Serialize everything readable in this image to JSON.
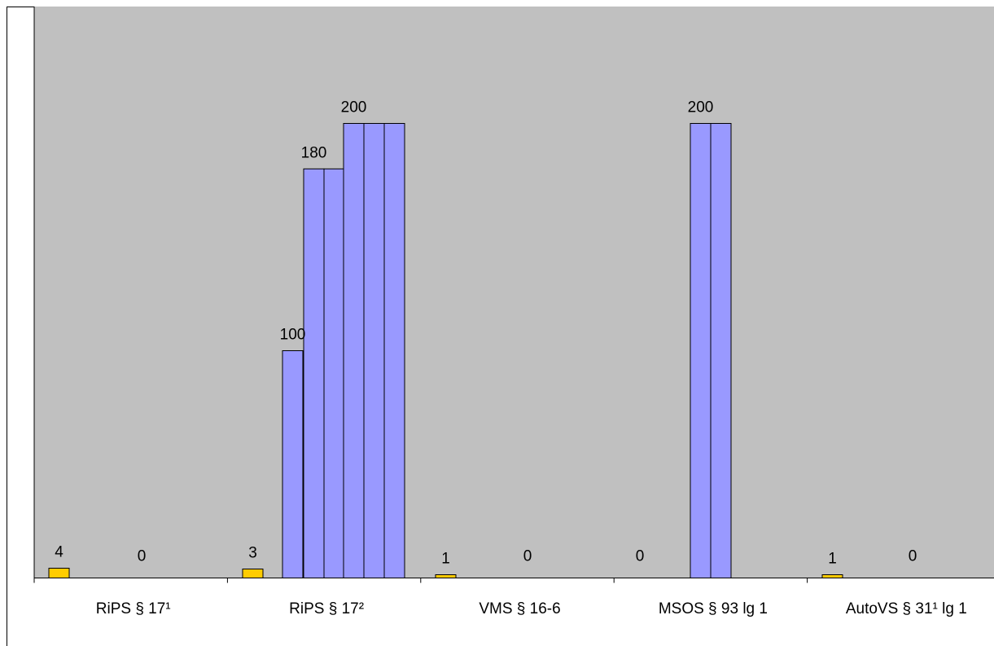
{
  "chart_data": {
    "type": "bar",
    "title": "",
    "xlabel": "",
    "ylabel": "",
    "ylim": [
      0,
      200
    ],
    "categories": [
      "RiPS § 17¹",
      "RiPS § 17²",
      "VMS § 16-6",
      "MSOS § 93 lg 1",
      "AutoVS § 31¹ lg 1"
    ],
    "colors": {
      "small": "#FFCC00",
      "large": "#9999FF",
      "plot_background": "#C0C0C0"
    },
    "groups": [
      {
        "category": "RiPS § 17¹",
        "bars": [
          {
            "value": 4,
            "label": "4",
            "color": "small"
          }
        ],
        "extra_labels": [
          "0"
        ]
      },
      {
        "category": "RiPS § 17²",
        "bars": [
          {
            "value": 3,
            "label": "3",
            "color": "small"
          },
          {
            "value": 100,
            "label": "100",
            "color": "large"
          },
          {
            "value": 180,
            "label": "180",
            "color": "large"
          },
          {
            "value": 180,
            "label": "",
            "color": "large"
          },
          {
            "value": 200,
            "label": "200",
            "color": "large"
          },
          {
            "value": 200,
            "label": "",
            "color": "large"
          },
          {
            "value": 200,
            "label": "",
            "color": "large"
          }
        ],
        "extra_labels": []
      },
      {
        "category": "VMS § 16-6",
        "bars": [
          {
            "value": 1,
            "label": "1",
            "color": "small"
          }
        ],
        "extra_labels": [
          "0"
        ]
      },
      {
        "category": "MSOS § 93 lg 1",
        "bars": [
          {
            "value": 200,
            "label": "200",
            "color": "large"
          },
          {
            "value": 200,
            "label": "",
            "color": "large"
          }
        ],
        "extra_labels": [
          "0"
        ]
      },
      {
        "category": "AutoVS § 31¹ lg 1",
        "bars": [
          {
            "value": 1,
            "label": "1",
            "color": "small"
          }
        ],
        "extra_labels": [
          "0"
        ]
      }
    ]
  }
}
